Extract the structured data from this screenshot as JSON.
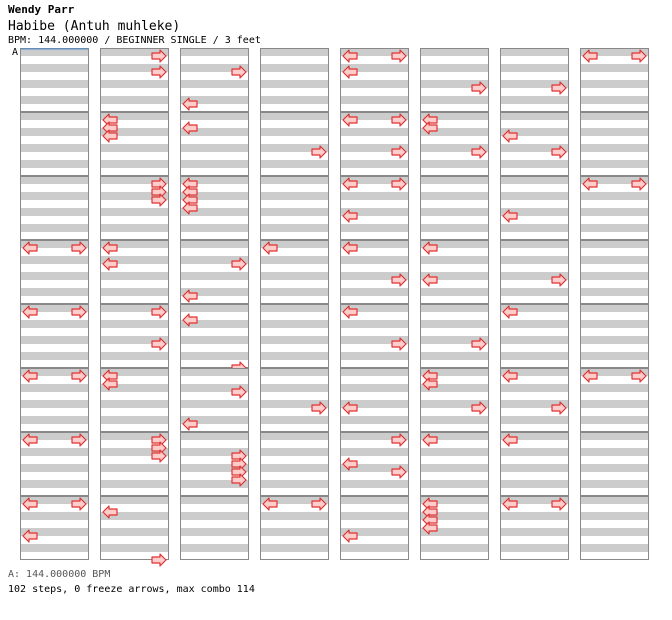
{
  "header": {
    "artist": "Wendy Parr",
    "title": "Habibe (Antuh muhleke)",
    "bpm_line": "BPM: 144.000000 / BEGINNER SINGLE / 3 feet"
  },
  "bpm_marker": "A",
  "footer": {
    "bpm_legend": "A: 144.000000 BPM",
    "stats": "102 steps, 0 freeze arrows, max combo 114"
  },
  "colors": {
    "stripe": "#cccccc",
    "lane_bg": "#ffffff",
    "border": "#888888",
    "arrow_fill": "#ffcccc",
    "arrow_stroke": "#dd3333"
  },
  "chart_data": {
    "type": "table",
    "columns": 8,
    "measures_per_column": 8,
    "rows_per_measure": 8,
    "row_values": [
      "L",
      "R",
      "LR"
    ],
    "measures": [
      [
        "",
        "",
        "",
        "",
        "",
        "",
        "",
        ""
      ],
      [
        "",
        "",
        "",
        "",
        "",
        "",
        "",
        ""
      ],
      [
        "",
        "",
        "",
        "",
        "",
        "",
        "",
        ""
      ],
      [
        "LR",
        "",
        "",
        "",
        "",
        "",
        "",
        ""
      ],
      [
        "LR",
        "",
        "",
        "",
        "",
        "",
        "",
        ""
      ],
      [
        "LR",
        "",
        "",
        "",
        "",
        "",
        "",
        ""
      ],
      [
        "LR",
        "",
        "",
        "",
        "",
        "",
        "",
        ""
      ],
      [
        "LR",
        "",
        "",
        "",
        "L",
        "",
        "",
        ""
      ],
      [
        "R",
        "",
        "R",
        "",
        "",
        "",
        "",
        ""
      ],
      [
        "L",
        "L",
        "L",
        "",
        "",
        "",
        "",
        ""
      ],
      [
        "R",
        "R",
        "R",
        "",
        "",
        "",
        "",
        ""
      ],
      [
        "L",
        "",
        "L",
        "",
        "",
        "",
        "",
        ""
      ],
      [
        "R",
        "",
        "",
        "",
        "R",
        "",
        "",
        ""
      ],
      [
        "L",
        "L",
        "",
        "",
        "",
        "",
        "",
        ""
      ],
      [
        "R",
        "R",
        "R",
        "",
        "",
        "",
        "",
        ""
      ],
      [
        "",
        "L",
        "",
        "",
        "",
        "",
        "",
        "R"
      ],
      [
        "",
        "",
        "R",
        "",
        "",
        "",
        "L",
        ""
      ],
      [
        "",
        "L",
        "",
        "",
        "",
        "",
        "",
        ""
      ],
      [
        "L",
        "L",
        "L",
        "L",
        "",
        "",
        "",
        ""
      ],
      [
        "",
        "",
        "R",
        "",
        "L",
        "",
        "R",
        ""
      ],
      [
        "L",
        "",
        "",
        "",
        "",
        "",
        "",
        ""
      ],
      [
        "",
        "",
        "R",
        "",
        "",
        "",
        "",
        ""
      ],
      [
        "",
        "",
        "R",
        "",
        "",
        "",
        "",
        ""
      ],
      [
        "",
        "",
        "",
        "",
        "",
        "",
        "",
        ""
      ],
      [
        "",
        "",
        "",
        "",
        "",
        "",
        "",
        ""
      ],
      [
        "",
        "R",
        "",
        "",
        "",
        "",
        "",
        ""
      ],
      [
        "",
        "",
        "",
        "",
        "",
        "",
        "",
        ""
      ],
      [
        "L",
        "",
        "",
        "",
        "",
        "",
        "",
        ""
      ],
      [
        "",
        "",
        "",
        "",
        "",
        "",
        "",
        ""
      ],
      [
        "",
        "",
        "R",
        "",
        "",
        "",
        "",
        ""
      ],
      [
        "",
        "",
        "",
        "",
        "",
        "",
        "",
        ""
      ],
      [
        "LR",
        "",
        "",
        "",
        "L",
        "",
        "",
        ""
      ],
      [
        "LR",
        "",
        "",
        "",
        "LR",
        "",
        "",
        ""
      ],
      [
        "",
        "L",
        "",
        "",
        "",
        "",
        "",
        ""
      ],
      [
        "LR",
        "",
        "",
        "",
        "R",
        "",
        "",
        ""
      ],
      [
        "L",
        "",
        "",
        "",
        "",
        "",
        "",
        ""
      ],
      [
        "L",
        "",
        "",
        "",
        "",
        "",
        "",
        ""
      ],
      [
        "",
        "",
        "",
        "",
        "",
        "",
        "",
        ""
      ],
      [
        "L",
        "",
        "",
        "",
        "",
        "",
        "",
        ""
      ],
      [
        "L",
        "",
        "",
        "",
        "",
        "",
        "",
        ""
      ],
      [
        "R",
        "",
        "",
        "",
        "L",
        "",
        "",
        ""
      ],
      [
        "",
        "",
        "",
        "",
        "",
        "",
        "",
        ""
      ],
      [
        "L",
        "",
        "",
        "",
        "",
        "",
        "",
        ""
      ],
      [
        "",
        "",
        "",
        "",
        "",
        "",
        "",
        ""
      ],
      [
        "",
        "",
        "",
        "",
        "L",
        "",
        "",
        ""
      ],
      [
        "",
        "",
        "",
        "",
        "",
        "",
        "",
        ""
      ],
      [
        "",
        "",
        "",
        "",
        "",
        "",
        "",
        ""
      ],
      [
        "",
        "",
        "",
        "",
        "",
        "",
        "",
        ""
      ],
      [
        "",
        "",
        "",
        "",
        "",
        "",
        "",
        ""
      ],
      [
        "",
        "",
        "",
        "",
        "",
        "",
        "",
        ""
      ],
      [
        "",
        "",
        "",
        "",
        "",
        "",
        "",
        ""
      ],
      [
        "",
        "",
        "",
        "",
        "",
        "",
        "",
        ""
      ],
      [
        "",
        "",
        "",
        "",
        "",
        "",
        "",
        ""
      ],
      [
        "",
        "",
        "",
        "",
        "",
        "",
        "",
        ""
      ],
      [
        "",
        "",
        "",
        "",
        "",
        "",
        "",
        ""
      ],
      [
        "",
        "",
        "",
        "",
        "",
        "",
        "",
        ""
      ],
      [
        "",
        "",
        "",
        "",
        "",
        "",
        "",
        ""
      ],
      [
        "",
        "",
        "",
        "",
        "",
        "",
        "",
        ""
      ],
      [
        "",
        "",
        "",
        "",
        "",
        "",
        "",
        ""
      ],
      [
        "",
        "",
        "",
        "",
        "",
        "",
        "",
        ""
      ],
      [
        "",
        "",
        "",
        "",
        "",
        "",
        "",
        ""
      ],
      [
        "",
        "",
        "",
        "",
        "",
        "",
        "",
        ""
      ],
      [
        "",
        "",
        "",
        "",
        "",
        "",
        "",
        ""
      ],
      [
        "",
        "",
        "",
        "",
        "",
        "",
        "",
        ""
      ]
    ],
    "lanes": [
      [
        [
          "",
          "",
          "",
          "",
          "",
          "",
          "",
          ""
        ],
        [
          "",
          "",
          "",
          "",
          "",
          "",
          "",
          ""
        ],
        [
          "",
          "",
          "",
          "",
          "",
          "",
          "",
          ""
        ],
        [
          "LR",
          "",
          "",
          "",
          "",
          "",
          "",
          ""
        ],
        [
          "LR",
          "",
          "",
          "",
          "",
          "",
          "",
          ""
        ],
        [
          "LR",
          "",
          "",
          "",
          "",
          "",
          "",
          ""
        ],
        [
          "LR",
          "",
          "",
          "",
          "",
          "",
          "",
          ""
        ],
        [
          "LR",
          "",
          "",
          "",
          "L",
          "",
          "",
          ""
        ]
      ],
      [
        [
          "R",
          "",
          "R",
          "",
          "",
          "",
          "",
          ""
        ],
        [
          "L",
          "L",
          "L",
          "",
          "",
          "",
          "",
          ""
        ],
        [
          "R",
          "R",
          "R",
          "",
          "",
          "",
          "",
          ""
        ],
        [
          "L",
          "",
          "L",
          "",
          "",
          "",
          "",
          ""
        ],
        [
          "R",
          "",
          "",
          "",
          "R",
          "",
          "",
          ""
        ],
        [
          "L",
          "L",
          "",
          "",
          "",
          "",
          "",
          ""
        ],
        [
          "R",
          "R",
          "R",
          "",
          "",
          "",
          "",
          ""
        ],
        [
          "",
          "L",
          "",
          "",
          "",
          "",
          "",
          "R"
        ]
      ],
      [
        [
          "",
          "",
          "R",
          "",
          "",
          "",
          "L",
          ""
        ],
        [
          "",
          "L",
          "",
          "",
          "",
          "",
          "",
          ""
        ],
        [
          "L",
          "L",
          "L",
          "L",
          "",
          "",
          "",
          ""
        ],
        [
          "",
          "",
          "R",
          "",
          "",
          "",
          "L",
          ""
        ],
        [
          "",
          "L",
          "",
          "",
          "",
          "",
          "",
          "R"
        ],
        [
          "",
          "",
          "R",
          "",
          "",
          "",
          "L",
          ""
        ],
        [
          "",
          "",
          "R",
          "R",
          "R",
          "R",
          "",
          ""
        ],
        [
          "",
          "",
          "",
          "",
          "",
          "",
          "",
          ""
        ]
      ],
      [
        [
          "",
          "",
          "",
          "",
          "",
          "",
          "",
          ""
        ],
        [
          "",
          "",
          "",
          "",
          "R",
          "",
          "",
          ""
        ],
        [
          "",
          "",
          "",
          "",
          "",
          "",
          "",
          ""
        ],
        [
          "L",
          "",
          "",
          "",
          "",
          "",
          "",
          ""
        ],
        [
          "",
          "",
          "",
          "",
          "",
          "",
          "",
          ""
        ],
        [
          "",
          "",
          "",
          "",
          "R",
          "",
          "",
          ""
        ],
        [
          "",
          "",
          "",
          "",
          "",
          "",
          "",
          ""
        ],
        [
          "LR",
          "",
          "",
          "",
          "",
          "",
          "",
          ""
        ]
      ],
      [
        [
          "LR",
          "",
          "L",
          "",
          "",
          "",
          "",
          ""
        ],
        [
          "LR",
          "",
          "",
          "",
          "R",
          "",
          "",
          ""
        ],
        [
          "LR",
          "",
          "",
          "",
          "L",
          "",
          "",
          ""
        ],
        [
          "L",
          "",
          "",
          "",
          "R",
          "",
          "",
          ""
        ],
        [
          "L",
          "",
          "",
          "",
          "R",
          "",
          "",
          ""
        ],
        [
          "",
          "",
          "",
          "",
          "L",
          "",
          "",
          ""
        ],
        [
          "R",
          "",
          "",
          "L",
          "R",
          "",
          "",
          ""
        ],
        [
          "",
          "",
          "",
          "",
          "L",
          "",
          "",
          ""
        ]
      ],
      [
        [
          "",
          "",
          "",
          "",
          "R",
          "",
          "",
          ""
        ],
        [
          "L",
          "L",
          "",
          "",
          "R",
          "",
          "",
          ""
        ],
        [
          "",
          "",
          "",
          "",
          "",
          "",
          "",
          ""
        ],
        [
          "L",
          "",
          "",
          "",
          "L",
          "",
          "",
          ""
        ],
        [
          "",
          "",
          "",
          "",
          "R",
          "",
          "",
          ""
        ],
        [
          "L",
          "L",
          "",
          "",
          "R",
          "",
          "",
          ""
        ],
        [
          "L",
          "",
          "",
          "",
          "",
          "",
          "",
          ""
        ],
        [
          "L",
          "L",
          "L",
          "L",
          "",
          "",
          "",
          ""
        ]
      ],
      [
        [
          "",
          "",
          "",
          "",
          "R",
          "",
          "",
          ""
        ],
        [
          "",
          "",
          "L",
          "",
          "R",
          "",
          "",
          ""
        ],
        [
          "",
          "",
          "",
          "",
          "L",
          "",
          "",
          ""
        ],
        [
          "",
          "",
          "",
          "",
          "R",
          "",
          "",
          ""
        ],
        [
          "L",
          "",
          "",
          "",
          "",
          "",
          "",
          ""
        ],
        [
          "L",
          "",
          "",
          "",
          "R",
          "",
          "",
          ""
        ],
        [
          "L",
          "",
          "",
          "",
          "",
          "",
          "",
          ""
        ],
        [
          "LR",
          "",
          "",
          "",
          "",
          "",
          "",
          ""
        ]
      ],
      [
        [
          "LR",
          "",
          "",
          "",
          "",
          "",
          "",
          ""
        ],
        [
          "",
          "",
          "",
          "",
          "",
          "",
          "",
          ""
        ],
        [
          "LR",
          "",
          "",
          "",
          "",
          "",
          "",
          ""
        ],
        [
          "",
          "",
          "",
          "",
          "",
          "",
          "",
          ""
        ],
        [
          "",
          "",
          "",
          "",
          "",
          "",
          "",
          ""
        ],
        [
          "LR",
          "",
          "",
          "",
          "",
          "",
          "",
          ""
        ],
        [
          "",
          "",
          "",
          "",
          "",
          "",
          "",
          ""
        ],
        [
          "",
          "",
          "",
          "",
          "",
          "",
          "",
          ""
        ]
      ]
    ]
  }
}
